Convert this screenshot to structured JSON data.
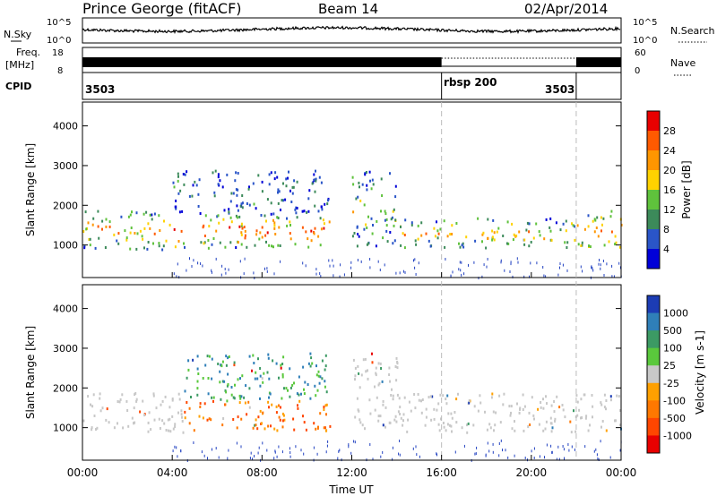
{
  "header": {
    "station": "Prince George (fitACF)",
    "beam": "Beam 14",
    "date": "02/Apr/2014"
  },
  "top_panels": {
    "nsky_label": "N.Sky",
    "nsky_ticks": [
      "10^5",
      "10^0"
    ],
    "nsearch_label": "N.Search",
    "nsearch_ticks": [
      "10^5",
      "10^0"
    ],
    "freq_label_1": "Freq.",
    "freq_label_2": "[MHz]",
    "freq_ticks": [
      "18",
      "8"
    ],
    "nave_label": "Nave",
    "nave_ticks": [
      "60",
      "0"
    ],
    "cpid_label": "CPID",
    "cpid_segments": [
      {
        "label": "3503",
        "start_hour": 0,
        "end_hour": 16
      },
      {
        "label": "rbsp 200",
        "start_hour": 16,
        "end_hour": 22
      },
      {
        "label": "3503",
        "start_hour": 22,
        "end_hour": 24
      }
    ]
  },
  "x_axis": {
    "label": "Time UT",
    "ticks": [
      "00:00",
      "04:00",
      "08:00",
      "12:00",
      "16:00",
      "20:00",
      "00:00"
    ],
    "range_hours": [
      0,
      24
    ]
  },
  "chart_data": [
    {
      "type": "heatmap",
      "panel": "power",
      "xlabel": "Time UT",
      "ylabel": "Slant Range [km]",
      "x_range_hours": [
        0,
        24
      ],
      "ylim_km": [
        180,
        4600
      ],
      "y_ticks": [
        1000,
        2000,
        3000,
        4000
      ],
      "colorbar": {
        "label": "Power [dB]",
        "ticks": [
          "4",
          "8",
          "12",
          "16",
          "20",
          "24",
          "28"
        ],
        "colors": [
          "#0000d8",
          "#2a55c8",
          "#3c8a5a",
          "#5fc23c",
          "#ffd200",
          "#ff9600",
          "#ff5a00",
          "#e80000"
        ]
      },
      "scatter_regions": [
        {
          "t0": 0,
          "t1": 4,
          "r0": 900,
          "r1": 1900,
          "power_db": 22
        },
        {
          "t0": 4,
          "t1": 11,
          "r0": 950,
          "r1": 1800,
          "power_db": 28
        },
        {
          "t0": 4,
          "t1": 11,
          "r0": 1800,
          "r1": 2900,
          "power_db": 10
        },
        {
          "t0": 12,
          "t1": 14,
          "r0": 1000,
          "r1": 2900,
          "power_db": 16
        },
        {
          "t0": 14,
          "t1": 22,
          "r0": 950,
          "r1": 1700,
          "power_db": 20
        },
        {
          "t0": 22,
          "t1": 24,
          "r0": 900,
          "r1": 1900,
          "power_db": 26
        }
      ]
    },
    {
      "type": "heatmap",
      "panel": "velocity",
      "xlabel": "Time UT",
      "ylabel": "Slant Range [km]",
      "x_range_hours": [
        0,
        24
      ],
      "ylim_km": [
        180,
        4600
      ],
      "y_ticks": [
        1000,
        2000,
        3000,
        4000
      ],
      "colorbar": {
        "label": "Velocity [m s-1]",
        "ticks": [
          "1000",
          "500",
          "100",
          "25",
          "-25",
          "-100",
          "-500",
          "-1000"
        ],
        "colors": [
          "#1c3cb4",
          "#2f7fb8",
          "#3c9a64",
          "#5ac83c",
          "#c8c8c8",
          "#ffa000",
          "#ff7800",
          "#ff4600",
          "#e80000"
        ]
      },
      "scatter_regions": [
        {
          "t0": 0,
          "t1": 4.5,
          "r0": 900,
          "r1": 1900,
          "velocity": 0
        },
        {
          "t0": 4.5,
          "t1": 11,
          "r0": 950,
          "r1": 1700,
          "velocity": -300
        },
        {
          "t0": 4.5,
          "t1": 11,
          "r0": 1700,
          "r1": 2900,
          "velocity": 200
        },
        {
          "t0": 12,
          "t1": 14,
          "r0": 1000,
          "r1": 2900,
          "velocity": 0
        },
        {
          "t0": 14,
          "t1": 24,
          "r0": 900,
          "r1": 1900,
          "velocity": 0
        }
      ]
    }
  ]
}
